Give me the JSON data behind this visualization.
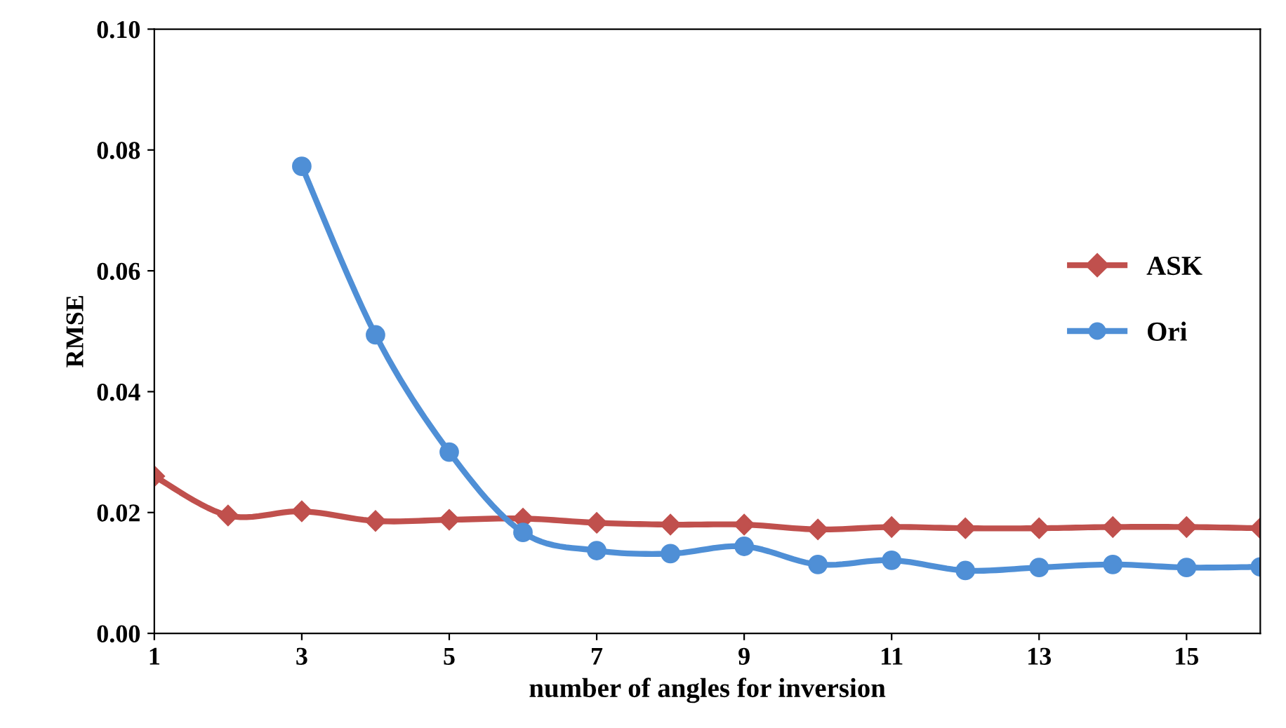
{
  "chart_data": {
    "type": "line",
    "xlabel": "number of angles for inversion",
    "ylabel": "RMSE",
    "x": [
      1,
      2,
      3,
      4,
      5,
      6,
      7,
      8,
      9,
      10,
      11,
      12,
      13,
      14,
      15,
      16
    ],
    "series": [
      {
        "name": "ASK",
        "color": "#c0504d",
        "marker": "diamond",
        "values": [
          0.026,
          0.0195,
          0.0202,
          0.0186,
          0.0188,
          0.019,
          0.0183,
          0.018,
          0.018,
          0.0172,
          0.0176,
          0.0174,
          0.0174,
          0.0176,
          0.0176,
          0.0174
        ]
      },
      {
        "name": "Ori",
        "color": "#4f8fd6",
        "marker": "circle",
        "values": [
          null,
          null,
          0.0773,
          0.0494,
          0.03,
          0.0167,
          0.0137,
          0.0132,
          0.0144,
          0.0114,
          0.0121,
          0.0104,
          0.0109,
          0.0114,
          0.0109,
          0.011
        ]
      }
    ],
    "xlim": [
      1,
      16
    ],
    "xticks": [
      1,
      3,
      5,
      7,
      9,
      11,
      13,
      15
    ],
    "ylim": [
      0,
      0.1
    ],
    "yticks": [
      {
        "value": 0,
        "label": "0.00"
      },
      {
        "value": 0.02,
        "label": "0.02"
      },
      {
        "value": 0.04,
        "label": "0.04"
      },
      {
        "value": 0.06,
        "label": "0.06"
      },
      {
        "value": 0.08,
        "label": "0.08"
      },
      {
        "value": 0.1,
        "label": "0.10"
      }
    ],
    "grid": false,
    "legend": "right",
    "line_style": "solid"
  }
}
